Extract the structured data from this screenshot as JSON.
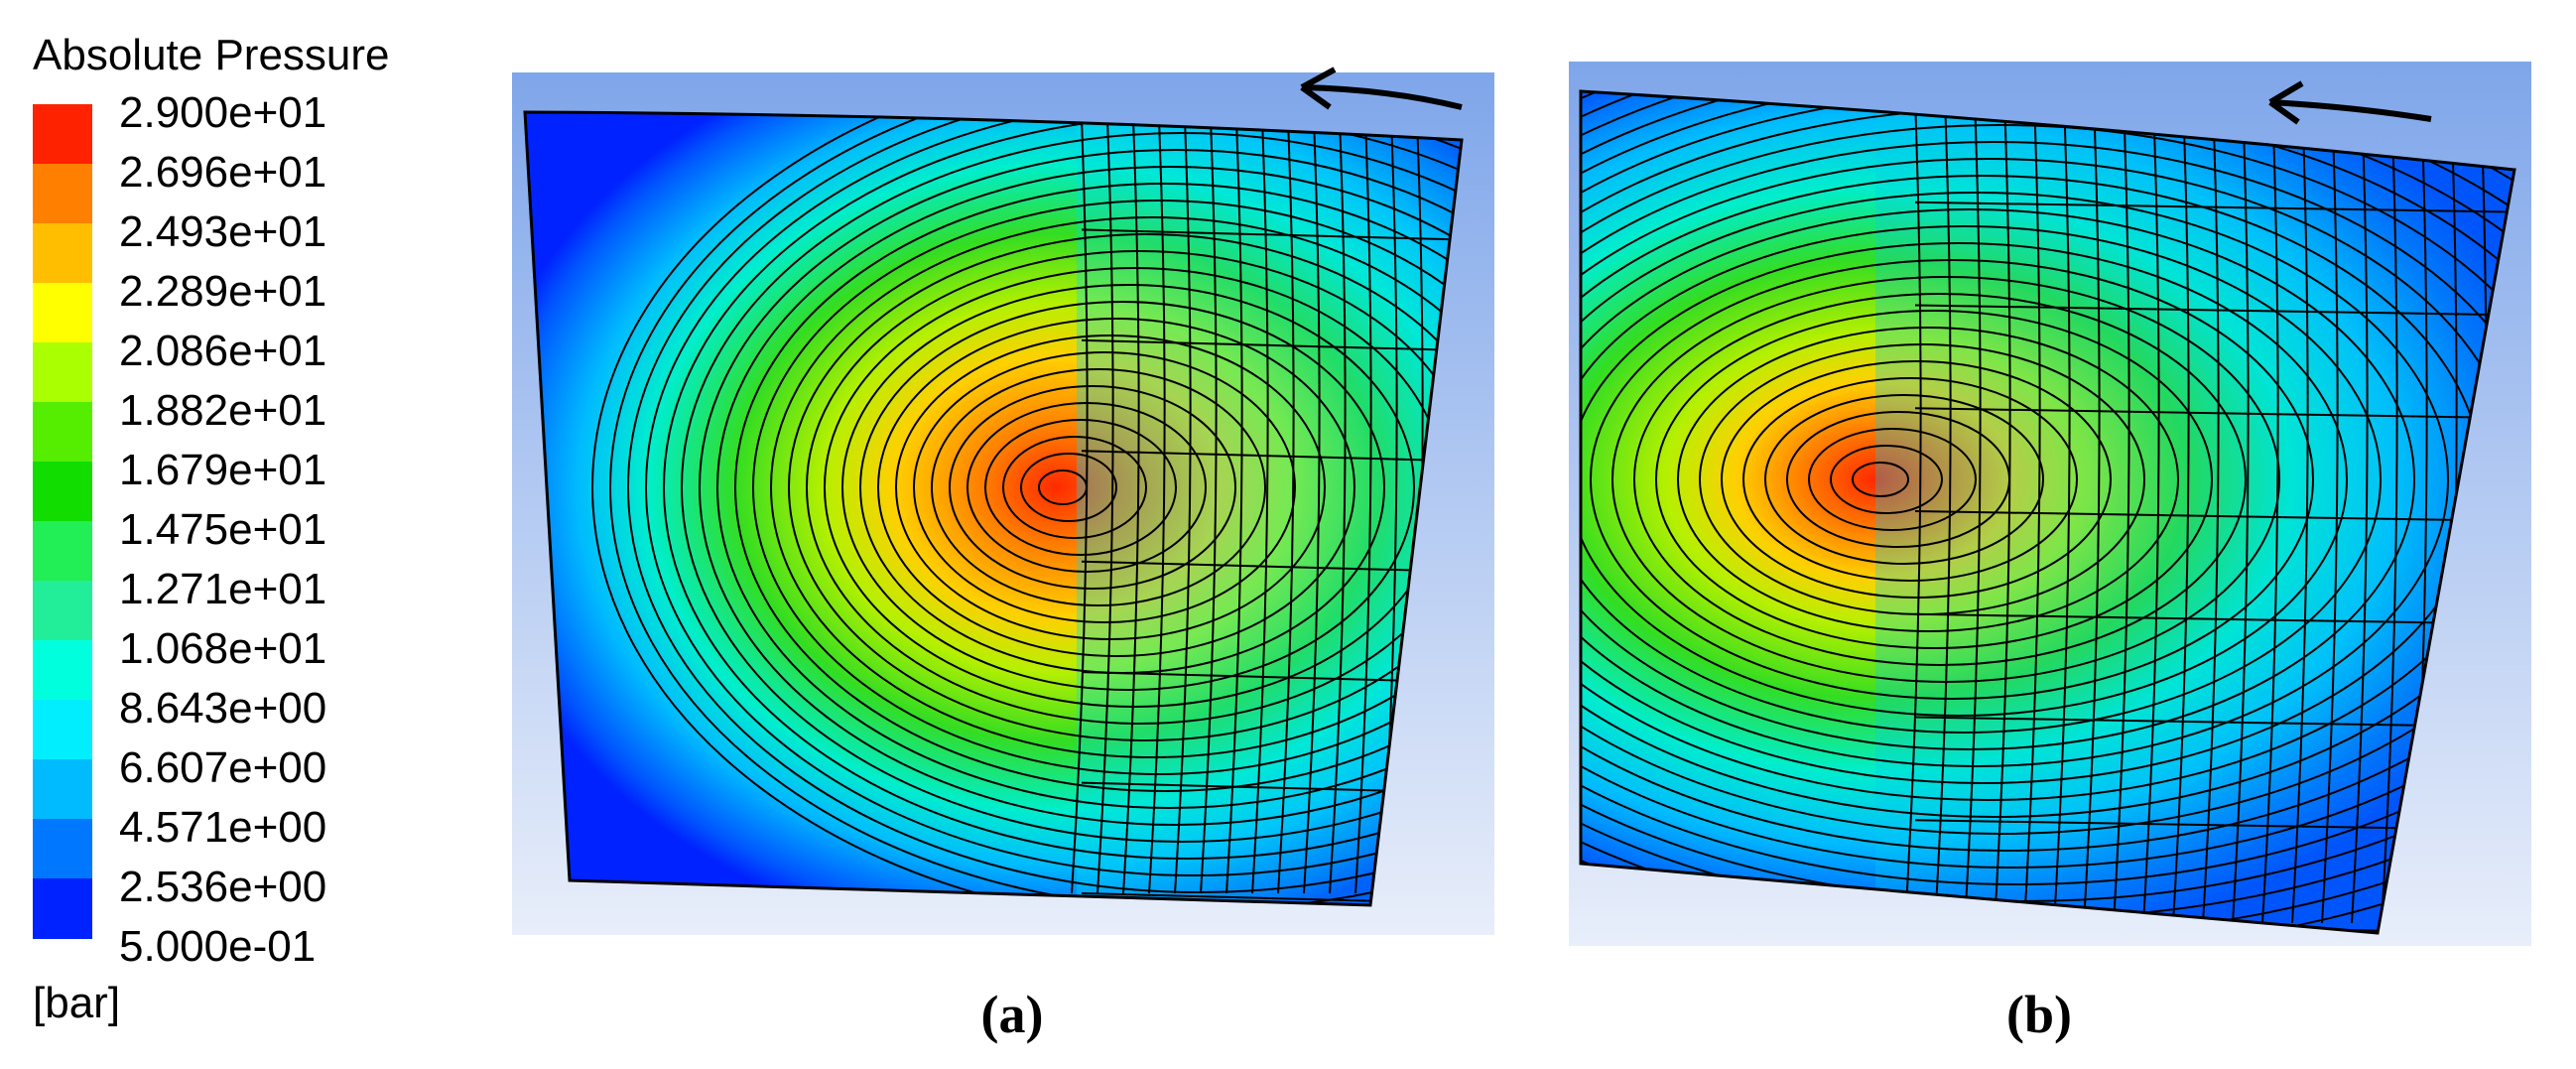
{
  "legend": {
    "title": "Absolute Pressure",
    "labels": [
      "2.900e+01",
      "2.696e+01",
      "2.493e+01",
      "2.289e+01",
      "2.086e+01",
      "1.882e+01",
      "1.679e+01",
      "1.475e+01",
      "1.271e+01",
      "1.068e+01",
      "8.643e+00",
      "6.607e+00",
      "4.571e+00",
      "2.536e+00",
      "5.000e-01"
    ],
    "unit": "[bar]"
  },
  "panels": [
    {
      "label": "(a)"
    },
    {
      "label": "(b)"
    }
  ]
}
